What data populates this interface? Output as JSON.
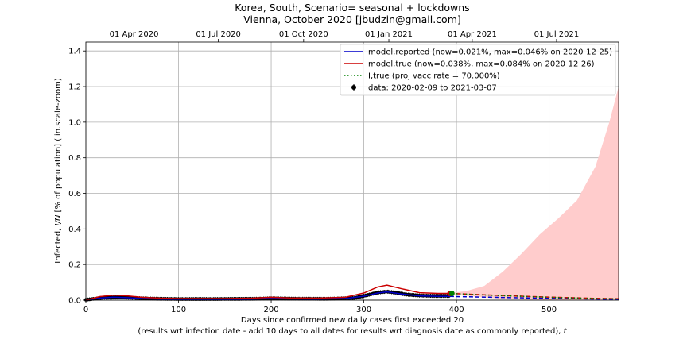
{
  "chart_data": {
    "type": "line",
    "title": "Korea, South, Scenario= seasonal + lockdowns",
    "subtitle": "Vienna, October 2020 [jbudzin@gmail.com]",
    "xlabel": "Days since confirmed new daily cases first exceeded 20",
    "xlabel2": "(results wrt infection date - add 10 days to all dates for results wrt diagnosis date as commonly reported),",
    "xlabel2_var": "t",
    "ylabel_pre": "Infected,",
    "ylabel_var": "I/N",
    "ylabel_post": "[% of population] (lin.scale-zoom)",
    "xlim": [
      0,
      575
    ],
    "ylim": [
      0,
      1.45
    ],
    "grid": true,
    "legend_position": "top-right",
    "x_ticks": [
      0,
      100,
      200,
      300,
      400,
      500
    ],
    "x_tick_labels": [
      "0",
      "100",
      "200",
      "300",
      "400",
      "500"
    ],
    "y_ticks": [
      0.0,
      0.2,
      0.4,
      0.6,
      0.8,
      1.0,
      1.2,
      1.4
    ],
    "y_tick_labels": [
      "0.0",
      "0.2",
      "0.4",
      "0.6",
      "0.8",
      "1.0",
      "1.2",
      "1.4"
    ],
    "top_axis": [
      {
        "label": "01 Apr 2020",
        "day": 52
      },
      {
        "label": "01 Jul 2020",
        "day": 143
      },
      {
        "label": "01 Oct 2020",
        "day": 235
      },
      {
        "label": "01 Jan 2021",
        "day": 327
      },
      {
        "label": "01 Apr 2021",
        "day": 417
      },
      {
        "label": "01 Jul 2021",
        "day": 508
      }
    ],
    "legend": [
      {
        "label": "model,reported (now=0.021%, max=0.046% on 2020-12-25)",
        "color": "#0000cc",
        "style": "solid"
      },
      {
        "label": "model,true (now=0.038%, max=0.084% on 2020-12-26)",
        "color": "#cc0000",
        "style": "solid"
      },
      {
        "label": "I,true (proj vacc rate = 70.000%)",
        "color": "#008000",
        "style": "dotted"
      },
      {
        "label": "data: 2020-02-09 to 2021-03-07",
        "color": "#000000",
        "style": "marker"
      }
    ],
    "series": [
      {
        "name": "model,reported",
        "color": "#0000cc",
        "x": [
          0,
          15,
          30,
          45,
          60,
          80,
          100,
          150,
          180,
          200,
          220,
          250,
          280,
          300,
          315,
          325,
          340,
          360,
          380,
          393
        ],
        "values": [
          0.0,
          0.012,
          0.017,
          0.014,
          0.009,
          0.006,
          0.005,
          0.005,
          0.006,
          0.009,
          0.007,
          0.006,
          0.009,
          0.022,
          0.04,
          0.046,
          0.035,
          0.024,
          0.021,
          0.021
        ]
      },
      {
        "name": "model,true",
        "color": "#cc0000",
        "x": [
          0,
          15,
          30,
          45,
          60,
          80,
          100,
          150,
          180,
          200,
          220,
          250,
          280,
          300,
          315,
          325,
          340,
          360,
          380,
          393
        ],
        "values": [
          0.0,
          0.02,
          0.028,
          0.024,
          0.016,
          0.011,
          0.009,
          0.009,
          0.011,
          0.016,
          0.012,
          0.011,
          0.016,
          0.04,
          0.074,
          0.084,
          0.065,
          0.042,
          0.038,
          0.038
        ]
      },
      {
        "name": "model,reported projection",
        "color": "#0000cc",
        "dashed": true,
        "x": [
          393,
          420,
          450,
          500,
          550,
          575
        ],
        "values": [
          0.021,
          0.018,
          0.015,
          0.01,
          0.006,
          0.005
        ]
      },
      {
        "name": "model,true projection",
        "color": "#cc0000",
        "dashed": true,
        "x": [
          393,
          420,
          450,
          500,
          550,
          575
        ],
        "values": [
          0.038,
          0.032,
          0.026,
          0.017,
          0.01,
          0.008
        ]
      },
      {
        "name": "I,true",
        "color": "#008000",
        "dotted": true,
        "x": [
          393,
          420,
          450,
          500,
          550,
          575
        ],
        "values": [
          0.038,
          0.031,
          0.025,
          0.016,
          0.009,
          0.007
        ]
      }
    ],
    "band": {
      "color": "#ffcccc",
      "x": [
        393,
        410,
        430,
        450,
        470,
        490,
        510,
        530,
        550,
        565,
        575
      ],
      "upper": [
        0.04,
        0.05,
        0.08,
        0.16,
        0.26,
        0.37,
        0.46,
        0.56,
        0.75,
        1.0,
        1.2
      ],
      "lower": [
        0.035,
        0.025,
        0.015,
        0.008,
        0.004,
        0.002,
        0.001,
        0.001,
        0.001,
        0.001,
        0.001
      ]
    },
    "data_points": {
      "color": "#000000",
      "x_start": 0,
      "x_end": 393,
      "x": [
        0,
        20,
        40,
        60,
        80,
        100,
        140,
        180,
        200,
        220,
        260,
        290,
        305,
        315,
        325,
        335,
        345,
        360,
        375,
        393
      ],
      "values": [
        0.002,
        0.014,
        0.016,
        0.01,
        0.007,
        0.006,
        0.006,
        0.007,
        0.01,
        0.008,
        0.007,
        0.012,
        0.03,
        0.043,
        0.048,
        0.042,
        0.032,
        0.026,
        0.024,
        0.024
      ]
    },
    "endpoint_markers": [
      {
        "x": 393,
        "value": 0.038,
        "color": "#cc0000"
      },
      {
        "x": 395,
        "value": 0.038,
        "color": "#008000"
      }
    ]
  }
}
